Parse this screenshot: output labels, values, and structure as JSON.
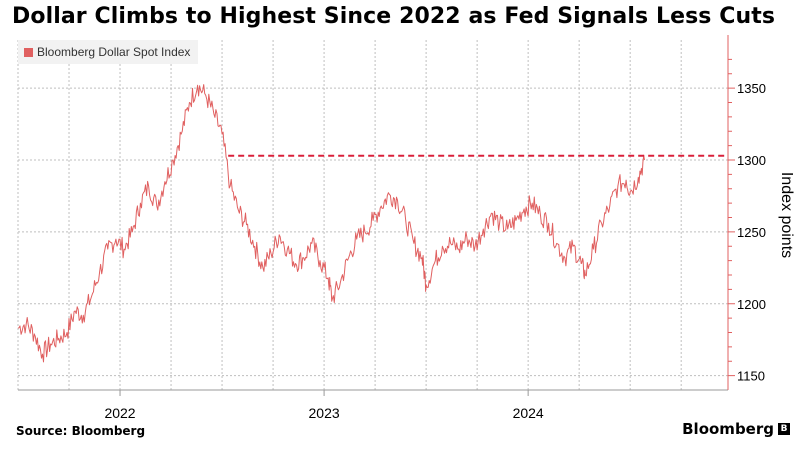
{
  "title": "Dollar Climbs to Highest Since 2022 as Fed Signals Less Cuts",
  "source": "Source: Bloomberg",
  "brand": "Bloomberg",
  "brand_mark": "B",
  "colors": {
    "series": "#e06060",
    "reference_line": "#d9203a",
    "grid": "#bfbfbf",
    "legend_bg": "#f2f2f2"
  },
  "chart_data": {
    "type": "line",
    "title": "Dollar Climbs to Highest Since 2022 as Fed Signals Less Cuts",
    "ylabel": "Index points",
    "xlabel": "",
    "ylim": [
      1140,
      1380
    ],
    "xlim": [
      2021.5,
      2024.95
    ],
    "y_ticks": [
      1150,
      1200,
      1250,
      1300,
      1350
    ],
    "x_ticks": [
      {
        "value": 2022.0,
        "label": "2022"
      },
      {
        "value": 2023.0,
        "label": "2023"
      },
      {
        "value": 2024.0,
        "label": "2024"
      }
    ],
    "grid": true,
    "legend_position": "top-left",
    "series": [
      {
        "name": "Bloomberg Dollar Spot Index",
        "points": [
          [
            2021.5,
            1183
          ],
          [
            2021.54,
            1186
          ],
          [
            2021.58,
            1179
          ],
          [
            2021.62,
            1165
          ],
          [
            2021.66,
            1172
          ],
          [
            2021.7,
            1176
          ],
          [
            2021.74,
            1180
          ],
          [
            2021.78,
            1195
          ],
          [
            2021.82,
            1192
          ],
          [
            2021.86,
            1205
          ],
          [
            2021.9,
            1222
          ],
          [
            2021.94,
            1238
          ],
          [
            2021.98,
            1245
          ],
          [
            2022.02,
            1238
          ],
          [
            2022.06,
            1250
          ],
          [
            2022.1,
            1270
          ],
          [
            2022.14,
            1282
          ],
          [
            2022.18,
            1268
          ],
          [
            2022.22,
            1285
          ],
          [
            2022.26,
            1300
          ],
          [
            2022.3,
            1318
          ],
          [
            2022.34,
            1340
          ],
          [
            2022.38,
            1352
          ],
          [
            2022.42,
            1345
          ],
          [
            2022.46,
            1332
          ],
          [
            2022.5,
            1318
          ],
          [
            2022.54,
            1282
          ],
          [
            2022.58,
            1265
          ],
          [
            2022.62,
            1255
          ],
          [
            2022.66,
            1240
          ],
          [
            2022.7,
            1225
          ],
          [
            2022.74,
            1235
          ],
          [
            2022.78,
            1248
          ],
          [
            2022.82,
            1238
          ],
          [
            2022.86,
            1228
          ],
          [
            2022.9,
            1232
          ],
          [
            2022.94,
            1242
          ],
          [
            2022.98,
            1230
          ],
          [
            2023.02,
            1218
          ],
          [
            2023.04,
            1203
          ],
          [
            2023.08,
            1215
          ],
          [
            2023.12,
            1232
          ],
          [
            2023.16,
            1245
          ],
          [
            2023.2,
            1250
          ],
          [
            2023.24,
            1258
          ],
          [
            2023.28,
            1268
          ],
          [
            2023.32,
            1276
          ],
          [
            2023.36,
            1272
          ],
          [
            2023.4,
            1258
          ],
          [
            2023.44,
            1242
          ],
          [
            2023.48,
            1232
          ],
          [
            2023.5,
            1213
          ],
          [
            2023.54,
            1228
          ],
          [
            2023.58,
            1240
          ],
          [
            2023.62,
            1242
          ],
          [
            2023.66,
            1238
          ],
          [
            2023.7,
            1246
          ],
          [
            2023.74,
            1240
          ],
          [
            2023.78,
            1252
          ],
          [
            2023.82,
            1263
          ],
          [
            2023.86,
            1256
          ],
          [
            2023.9,
            1252
          ],
          [
            2023.94,
            1258
          ],
          [
            2023.98,
            1266
          ],
          [
            2024.02,
            1270
          ],
          [
            2024.06,
            1262
          ],
          [
            2024.1,
            1256
          ],
          [
            2024.14,
            1242
          ],
          [
            2024.18,
            1232
          ],
          [
            2024.22,
            1240
          ],
          [
            2024.26,
            1228
          ],
          [
            2024.28,
            1220
          ],
          [
            2024.32,
            1238
          ],
          [
            2024.36,
            1256
          ],
          [
            2024.4,
            1268
          ],
          [
            2024.44,
            1282
          ],
          [
            2024.48,
            1286
          ],
          [
            2024.5,
            1278
          ],
          [
            2024.54,
            1288
          ],
          [
            2024.57,
            1300
          ]
        ]
      }
    ],
    "reference_line": {
      "value": 1303,
      "from_x": 2022.53,
      "style": "dashed"
    }
  }
}
